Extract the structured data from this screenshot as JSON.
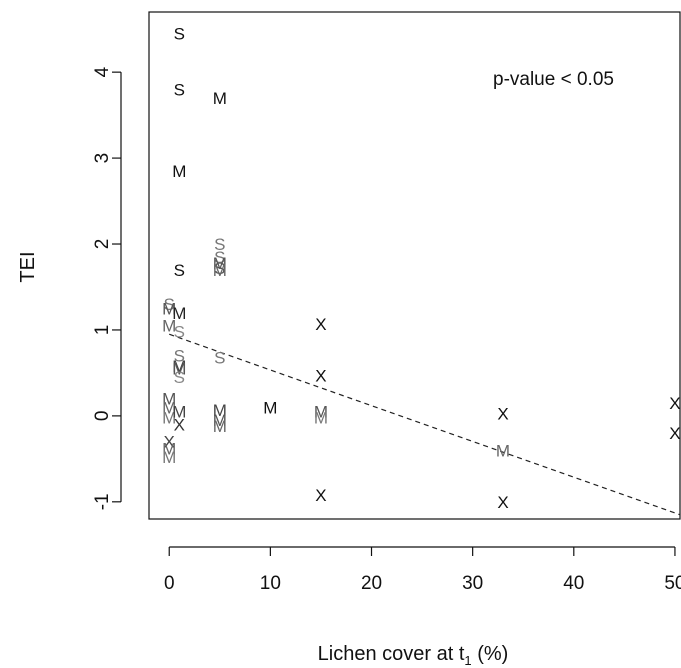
{
  "chart_data": {
    "type": "scatter",
    "xlabel": "Lichen cover at t",
    "xlabel_subscript": "1",
    "xlabel_suffix": " (%)",
    "ylabel": "TEI",
    "xlim": [
      -2,
      50.5
    ],
    "ylim": [
      -1.2,
      4.7
    ],
    "xticks": [
      "0",
      "10",
      "20",
      "30",
      "40",
      "50"
    ],
    "yticks": [
      "-1",
      "0",
      "1",
      "2",
      "3",
      "4"
    ],
    "annotation": "p-value < 0.05",
    "grid": false,
    "points": [
      {
        "x": 1,
        "y": 4.45,
        "label": "S",
        "color": "#111111"
      },
      {
        "x": 1,
        "y": 3.8,
        "label": "S",
        "color": "#111111"
      },
      {
        "x": 5,
        "y": 3.7,
        "label": "M",
        "color": "#111111"
      },
      {
        "x": 1,
        "y": 2.85,
        "label": "M",
        "color": "#111111"
      },
      {
        "x": 5,
        "y": 2.0,
        "label": "S",
        "color": "#777777"
      },
      {
        "x": 5,
        "y": 1.85,
        "label": "S",
        "color": "#777777"
      },
      {
        "x": 5,
        "y": 1.78,
        "label": "M",
        "color": "#555555"
      },
      {
        "x": 5,
        "y": 1.72,
        "label": "S",
        "color": "#555555"
      },
      {
        "x": 5,
        "y": 1.7,
        "label": "M",
        "color": "#666666"
      },
      {
        "x": 1,
        "y": 1.7,
        "label": "S",
        "color": "#111111"
      },
      {
        "x": 0,
        "y": 1.3,
        "label": "S",
        "color": "#777777"
      },
      {
        "x": 0,
        "y": 1.25,
        "label": "M",
        "color": "#555555"
      },
      {
        "x": 1,
        "y": 1.2,
        "label": "M",
        "color": "#222222"
      },
      {
        "x": 0,
        "y": 1.05,
        "label": "M",
        "color": "#666666"
      },
      {
        "x": 1,
        "y": 0.98,
        "label": "S",
        "color": "#888888"
      },
      {
        "x": 15,
        "y": 1.07,
        "label": "X",
        "color": "#111111"
      },
      {
        "x": 5,
        "y": 0.68,
        "label": "S",
        "color": "#777777"
      },
      {
        "x": 1,
        "y": 0.7,
        "label": "S",
        "color": "#777777"
      },
      {
        "x": 1,
        "y": 0.58,
        "label": "M",
        "color": "#444444"
      },
      {
        "x": 1,
        "y": 0.55,
        "label": "M",
        "color": "#555555"
      },
      {
        "x": 1,
        "y": 0.45,
        "label": "S",
        "color": "#888888"
      },
      {
        "x": 15,
        "y": 0.47,
        "label": "X",
        "color": "#111111"
      },
      {
        "x": 0,
        "y": 0.2,
        "label": "M",
        "color": "#555555"
      },
      {
        "x": 0,
        "y": 0.1,
        "label": "M",
        "color": "#666666"
      },
      {
        "x": 0,
        "y": -0.02,
        "label": "M",
        "color": "#777777"
      },
      {
        "x": 1,
        "y": 0.05,
        "label": "M",
        "color": "#444444"
      },
      {
        "x": 1,
        "y": -0.1,
        "label": "X",
        "color": "#333333"
      },
      {
        "x": 5,
        "y": 0.07,
        "label": "M",
        "color": "#444444"
      },
      {
        "x": 5,
        "y": -0.05,
        "label": "M",
        "color": "#555555"
      },
      {
        "x": 5,
        "y": -0.12,
        "label": "M",
        "color": "#666666"
      },
      {
        "x": 10,
        "y": 0.1,
        "label": "M",
        "color": "#111111"
      },
      {
        "x": 15,
        "y": 0.05,
        "label": "M",
        "color": "#555555"
      },
      {
        "x": 15,
        "y": -0.02,
        "label": "M",
        "color": "#777777"
      },
      {
        "x": 0,
        "y": -0.3,
        "label": "X",
        "color": "#444444"
      },
      {
        "x": 0,
        "y": -0.38,
        "label": "M",
        "color": "#666666"
      },
      {
        "x": 0,
        "y": -0.48,
        "label": "M",
        "color": "#777777"
      },
      {
        "x": 15,
        "y": -0.92,
        "label": "X",
        "color": "#111111"
      },
      {
        "x": 33,
        "y": 0.03,
        "label": "X",
        "color": "#111111"
      },
      {
        "x": 33,
        "y": -0.4,
        "label": "M",
        "color": "#666666"
      },
      {
        "x": 33,
        "y": -1.0,
        "label": "X",
        "color": "#111111"
      },
      {
        "x": 50,
        "y": 0.15,
        "label": "X",
        "color": "#111111"
      },
      {
        "x": 50,
        "y": -0.2,
        "label": "X",
        "color": "#111111"
      }
    ],
    "fit_line": {
      "x": [
        0,
        50.5
      ],
      "y": [
        0.95,
        -1.15
      ],
      "style": "dashed"
    }
  }
}
